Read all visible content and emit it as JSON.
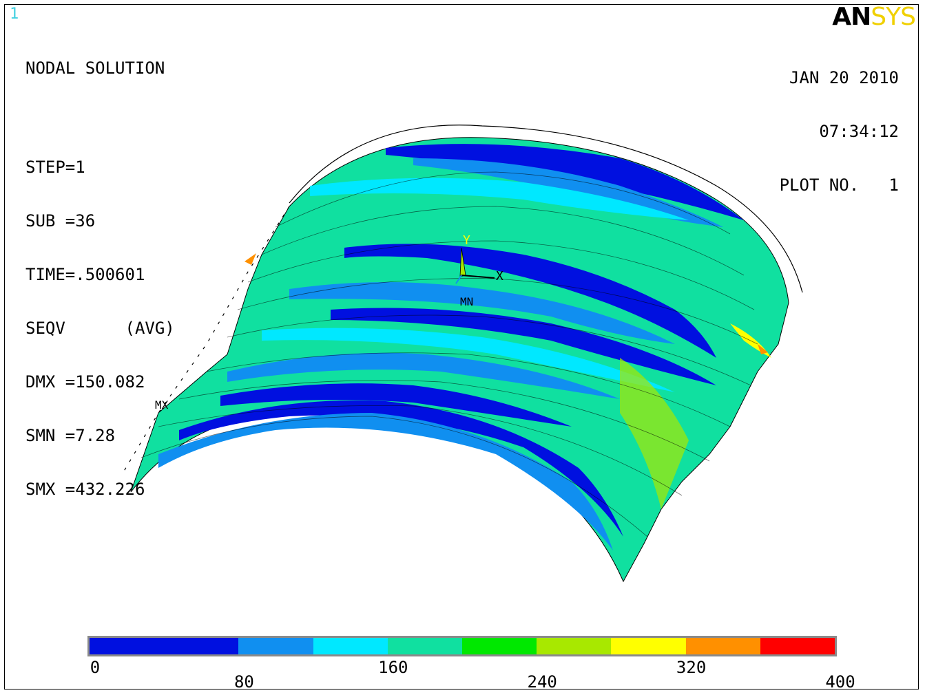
{
  "window_number": "1",
  "logo": {
    "an": "AN",
    "sys": "SYS"
  },
  "info": {
    "title": "NODAL SOLUTION",
    "step": "STEP=1",
    "sub": "SUB =36",
    "time": "TIME=.500601",
    "result": "SEQV      (AVG)",
    "dmx": "DMX =150.082",
    "smn": "SMN =7.28",
    "smx": "SMX =432.226"
  },
  "stamp": {
    "date": "JAN 20 2010",
    "time": "07:34:12",
    "plot": "PLOT NO.   1"
  },
  "triad": {
    "y": "Y",
    "x": "X"
  },
  "markers": {
    "min": "MN",
    "max": "MX"
  },
  "legend": {
    "colors": [
      "#0010e0",
      "#108ff0",
      "#00e8ff",
      "#10e0a0",
      "#00e800",
      "#a8e800",
      "#ffff00",
      "#ff9000",
      "#ff0000"
    ],
    "ticks_upper": [
      "0",
      "160",
      "320"
    ],
    "ticks_lower": [
      "80",
      "240",
      "400"
    ]
  }
}
